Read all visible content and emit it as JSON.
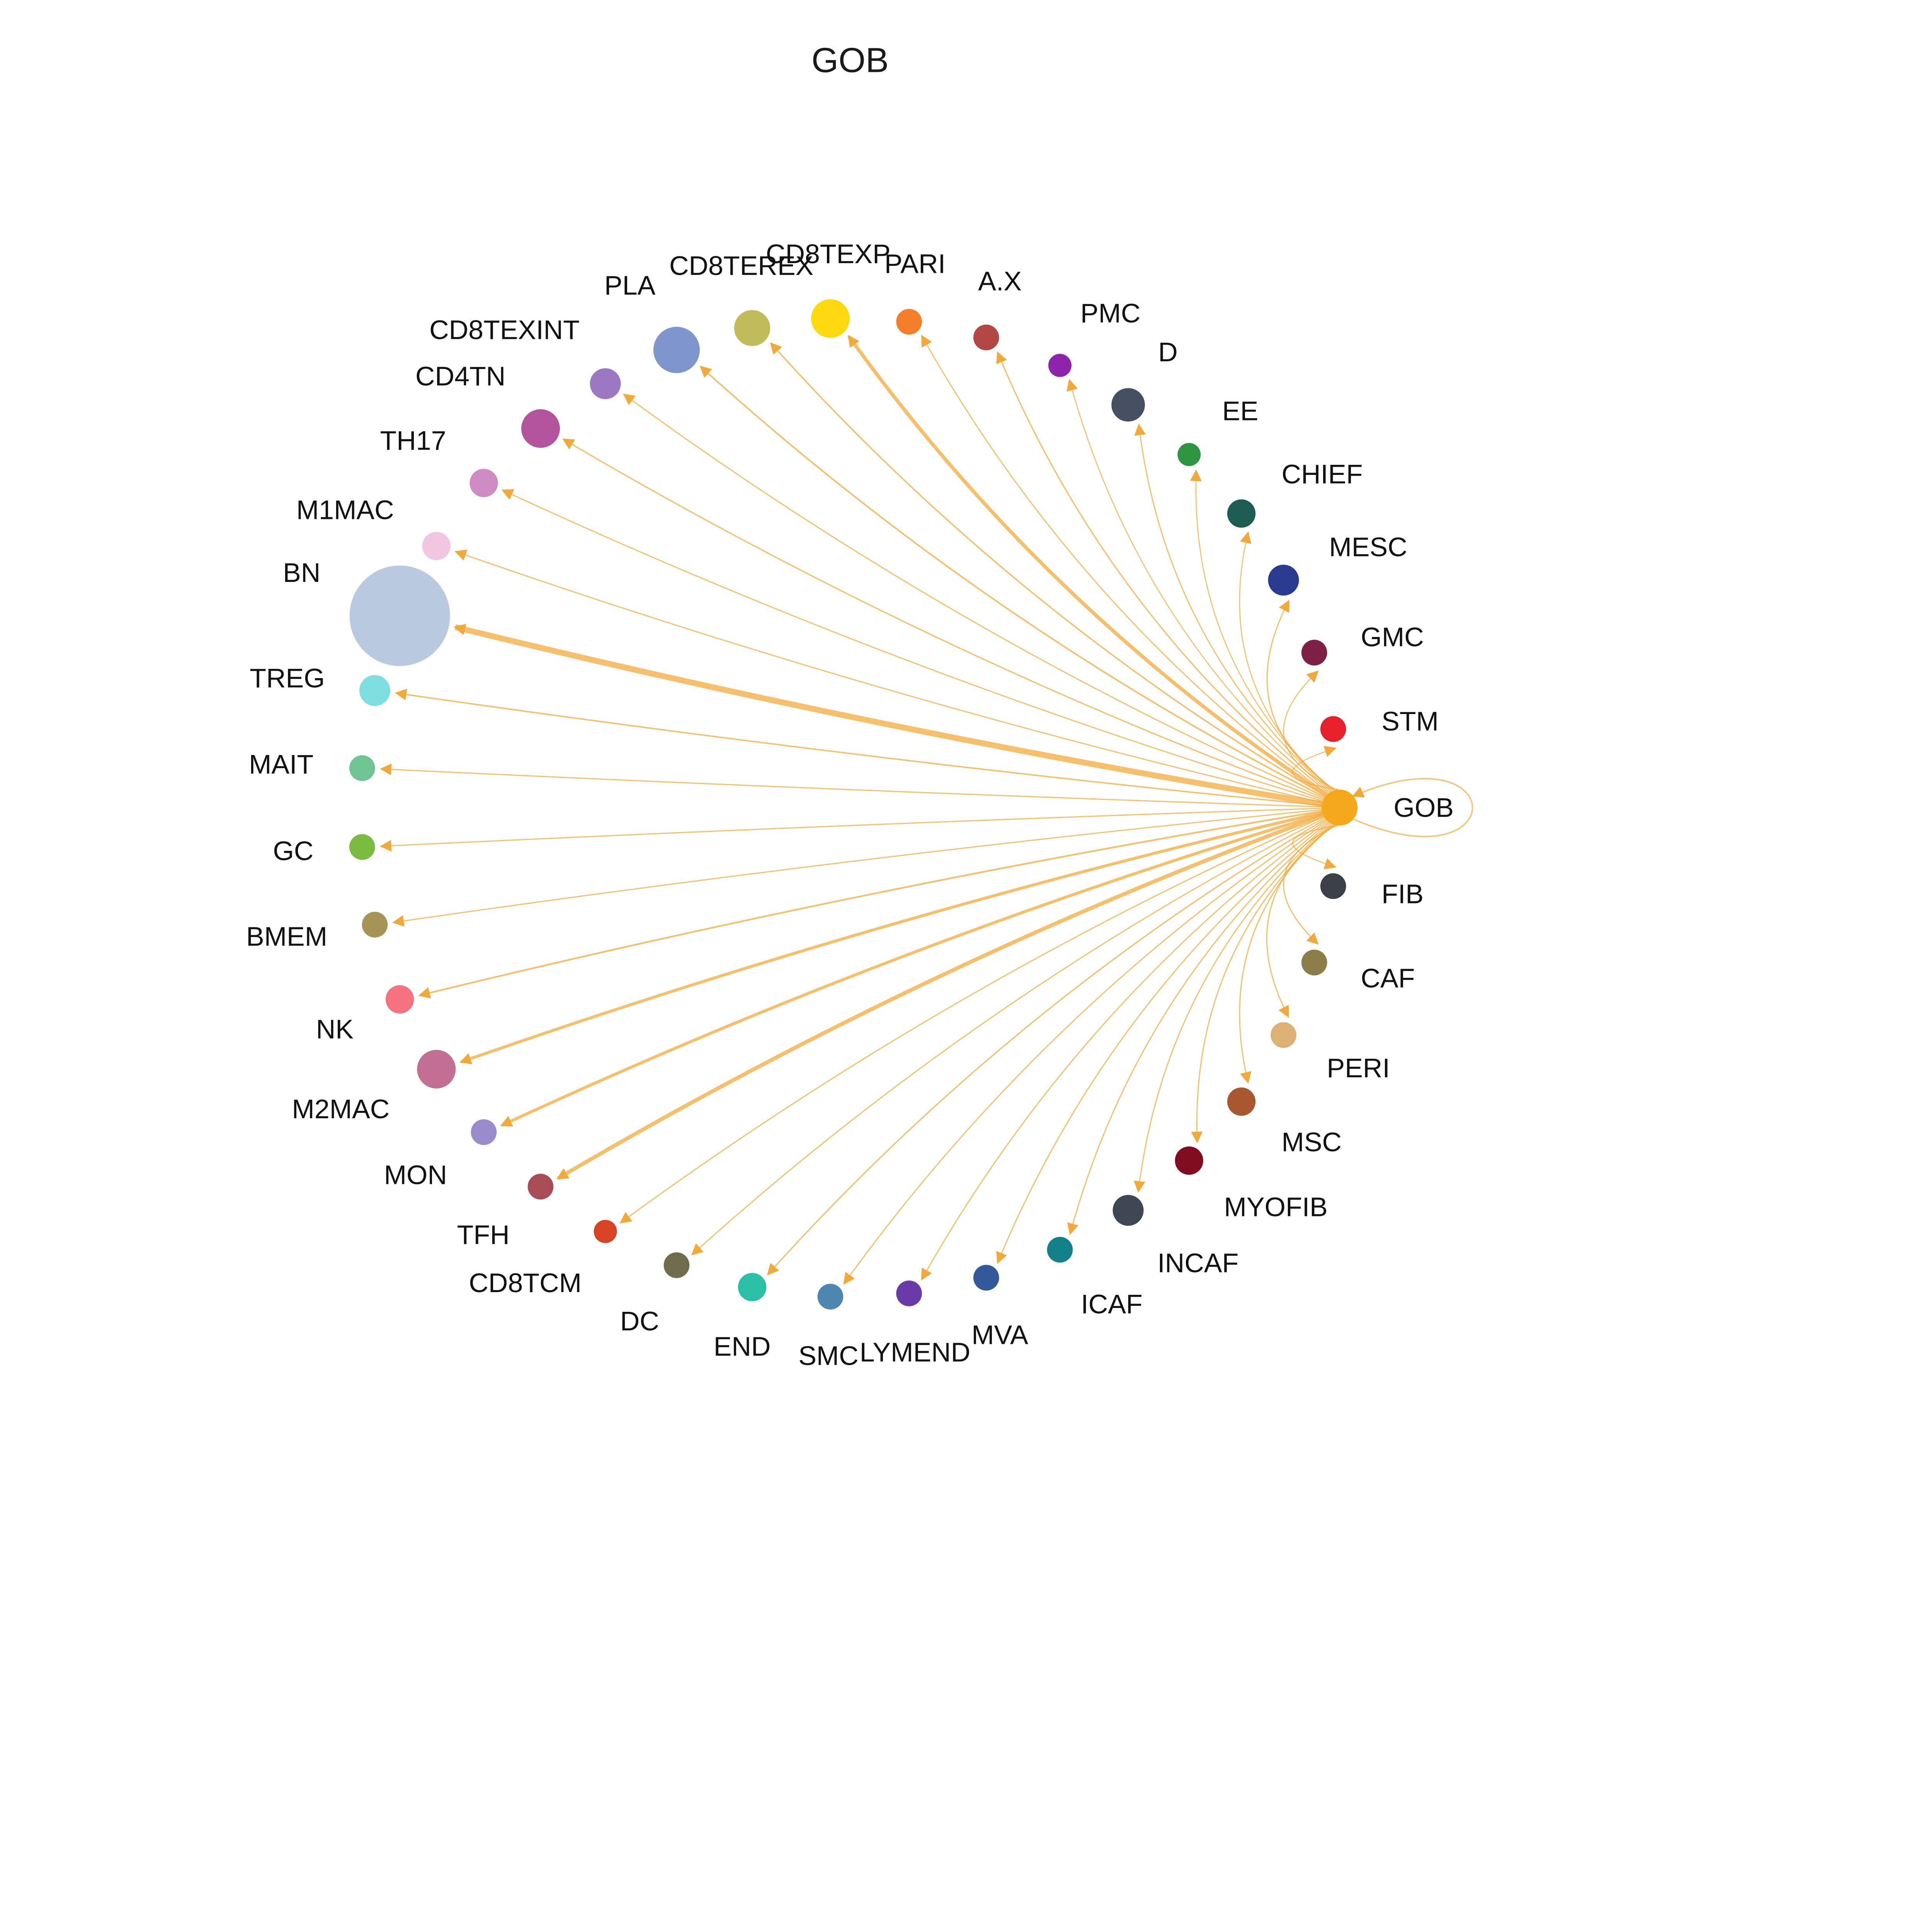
{
  "title": "GOB",
  "chart_data": {
    "type": "circular-network",
    "title": "GOB",
    "source": "GOB",
    "edge_color": "#F2A93B",
    "background": "#FFFFFF",
    "label_color": "#111111",
    "layout": "nodes equally spaced on a circle, source GOB at right (angle 0), order counterclockwise; directed edges from GOB to every node with arrowheads; GOB has a self-loop",
    "nodes": [
      {
        "label": "GOB",
        "color": "#F5A81C",
        "radius": 14,
        "edge_weight": 0,
        "self_loop": true
      },
      {
        "label": "STM",
        "color": "#E8202C",
        "radius": 10,
        "edge_weight": 0.8
      },
      {
        "label": "GMC",
        "color": "#7C2046",
        "radius": 10,
        "edge_weight": 0.8
      },
      {
        "label": "MESC",
        "color": "#2A3B8F",
        "radius": 12,
        "edge_weight": 0.9
      },
      {
        "label": "CHIEF",
        "color": "#1D5C53",
        "radius": 11,
        "edge_weight": 0.8
      },
      {
        "label": "EE",
        "color": "#2E9642",
        "radius": 9,
        "edge_weight": 0.8
      },
      {
        "label": "D",
        "color": "#474F63",
        "radius": 13,
        "edge_weight": 0.9
      },
      {
        "label": "PMC",
        "color": "#8E24AA",
        "radius": 9,
        "edge_weight": 0.8
      },
      {
        "label": "A.X",
        "color": "#B24745",
        "radius": 10,
        "edge_weight": 1.0
      },
      {
        "label": "PARI",
        "color": "#F47E2A",
        "radius": 10,
        "edge_weight": 0.9
      },
      {
        "label": "CD8TEXP",
        "color": "#FFD90F",
        "radius": 15,
        "edge_weight": 2.8
      },
      {
        "label": "CD8TEREX",
        "color": "#C0BC5C",
        "radius": 14,
        "edge_weight": 1.1
      },
      {
        "label": "PLA",
        "color": "#7E96CC",
        "radius": 18,
        "edge_weight": 1.2
      },
      {
        "label": "CD8TEXINT",
        "color": "#9C77C4",
        "radius": 12,
        "edge_weight": 0.9
      },
      {
        "label": "CD4TN",
        "color": "#B5549E",
        "radius": 15,
        "edge_weight": 1.0
      },
      {
        "label": "TH17",
        "color": "#CE8BC4",
        "radius": 11,
        "edge_weight": 0.9
      },
      {
        "label": "M1MAC",
        "color": "#F0C6E0",
        "radius": 11,
        "edge_weight": 0.9
      },
      {
        "label": "BN",
        "color": "#B9C9E0",
        "radius": 39,
        "edge_weight": 4.5
      },
      {
        "label": "TREG",
        "color": "#7EDEE0",
        "radius": 12,
        "edge_weight": 1.1
      },
      {
        "label": "MAIT",
        "color": "#6FC493",
        "radius": 10,
        "edge_weight": 0.9
      },
      {
        "label": "GC",
        "color": "#7ABC3F",
        "radius": 10,
        "edge_weight": 0.9
      },
      {
        "label": "BMEM",
        "color": "#A59455",
        "radius": 10,
        "edge_weight": 0.9
      },
      {
        "label": "NK",
        "color": "#F5737F",
        "radius": 11,
        "edge_weight": 1.3
      },
      {
        "label": "M2MAC",
        "color": "#C36E93",
        "radius": 15,
        "edge_weight": 2.3
      },
      {
        "label": "MON",
        "color": "#9A8CCC",
        "radius": 10,
        "edge_weight": 2.3
      },
      {
        "label": "TFH",
        "color": "#A84C55",
        "radius": 10,
        "edge_weight": 3.0
      },
      {
        "label": "CD8TCM",
        "color": "#D64425",
        "radius": 9,
        "edge_weight": 0.9
      },
      {
        "label": "DC",
        "color": "#6E6C4A",
        "radius": 10,
        "edge_weight": 0.9
      },
      {
        "label": "END",
        "color": "#2BBFA5",
        "radius": 11,
        "edge_weight": 1.0
      },
      {
        "label": "SMC",
        "color": "#4E86B0",
        "radius": 10,
        "edge_weight": 0.9
      },
      {
        "label": "LYMEND",
        "color": "#6A3BA8",
        "radius": 10,
        "edge_weight": 0.9
      },
      {
        "label": "MVA",
        "color": "#33599B",
        "radius": 10,
        "edge_weight": 0.9
      },
      {
        "label": "ICAF",
        "color": "#14808A",
        "radius": 10,
        "edge_weight": 0.9
      },
      {
        "label": "INCAF",
        "color": "#3E4553",
        "radius": 12,
        "edge_weight": 0.9
      },
      {
        "label": "MYOFIB",
        "color": "#7E0E20",
        "radius": 11,
        "edge_weight": 0.9
      },
      {
        "label": "MSC",
        "color": "#A8572F",
        "radius": 11,
        "edge_weight": 0.9
      },
      {
        "label": "PERI",
        "color": "#DDB074",
        "radius": 10,
        "edge_weight": 0.9
      },
      {
        "label": "CAF",
        "color": "#8B7D4A",
        "radius": 10,
        "edge_weight": 0.9
      },
      {
        "label": "FIB",
        "color": "#3B3F46",
        "radius": 10,
        "edge_weight": 0.8
      }
    ]
  }
}
